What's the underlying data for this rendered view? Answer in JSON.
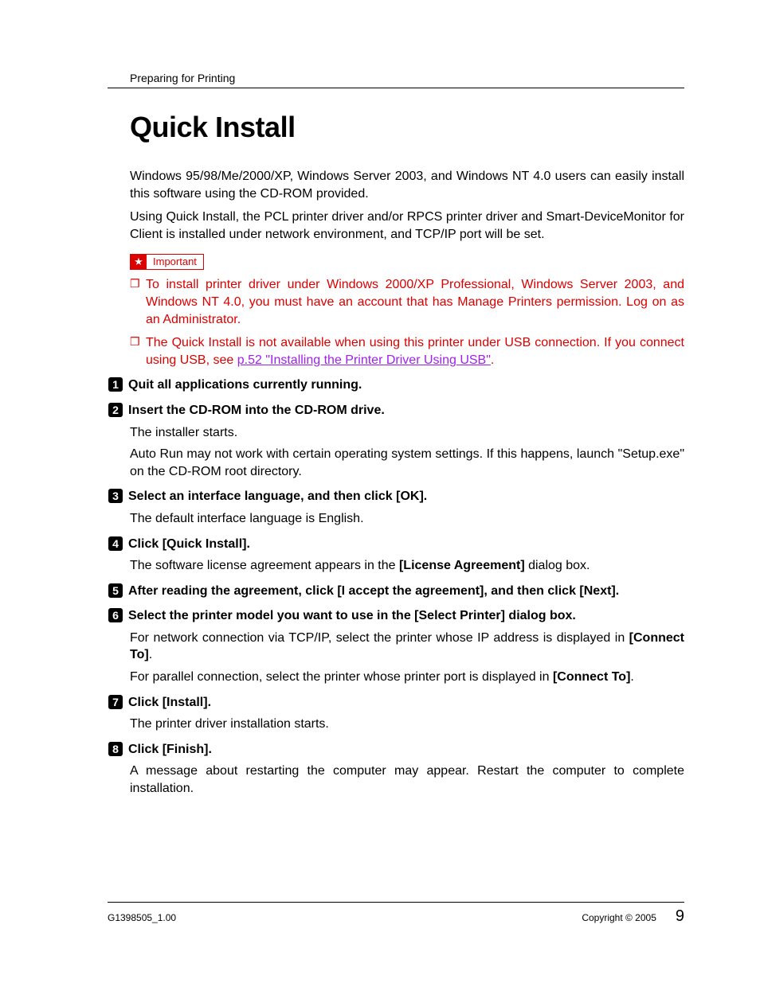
{
  "header": {
    "section": "Preparing for Printing"
  },
  "title": "Quick Install",
  "intro": [
    "Windows 95/98/Me/2000/XP, Windows Server 2003, and Windows NT 4.0 users can easily install this software using the CD-ROM provided.",
    "Using Quick Install, the PCL printer driver and/or RPCS printer driver and Smart-DeviceMonitor for Client is installed under network environment, and TCP/IP port will be set."
  ],
  "important": {
    "label": "Important",
    "items": [
      {
        "text": "To install printer driver under Windows 2000/XP Professional, Windows Server 2003, and Windows NT 4.0, you must have an account that has Manage Printers permission. Log on as an Administrator."
      },
      {
        "prefix": "The Quick Install is not available when using this printer under USB connection. If you connect using USB, see ",
        "link": "p.52 \"Installing the Printer Driver Using USB\"",
        "suffix": "."
      }
    ]
  },
  "steps": [
    {
      "n": "1",
      "title_plain": "Quit all applications currently running."
    },
    {
      "n": "2",
      "title_plain": "Insert the CD-ROM into the CD-ROM drive.",
      "body": [
        "The installer starts.",
        "Auto Run may not work with certain operating system settings. If this happens, launch \"Setup.exe\" on the CD-ROM root directory."
      ]
    },
    {
      "n": "3",
      "title_pre": "Select an interface language, and then click ",
      "title_ui": "[OK]",
      "title_post": ".",
      "body": [
        "The default interface language is English."
      ]
    },
    {
      "n": "4",
      "title_pre": "Click ",
      "title_ui": "[Quick Install]",
      "title_post": ".",
      "body_rich": {
        "pre": "The software license agreement appears in the ",
        "ui": "[License Agreement]",
        "post": " dialog box."
      }
    },
    {
      "n": "5",
      "title_pre": "After reading the agreement, click ",
      "title_ui": "[I accept the agreement]",
      "title_mid": ", and then click ",
      "title_ui2": "[Next]",
      "title_post": "."
    },
    {
      "n": "6",
      "title_pre": "Select the printer model you want to use in the ",
      "title_ui": "[Select Printer]",
      "title_post": " dialog box.",
      "body_rich_list": [
        {
          "pre": "For network connection via TCP/IP, select the printer whose IP address is displayed in ",
          "ui": "[Connect To]",
          "post": "."
        },
        {
          "pre": "For parallel connection, select the printer whose printer port is displayed in ",
          "ui": "[Connect To]",
          "post": "."
        }
      ]
    },
    {
      "n": "7",
      "title_pre": "Click ",
      "title_ui": "[Install]",
      "title_post": ".",
      "body": [
        "The printer driver installation starts."
      ]
    },
    {
      "n": "8",
      "title_pre": "Click ",
      "title_ui": "[Finish]",
      "title_post": ".",
      "body": [
        "A message about restarting the computer may appear. Restart the computer to complete installation."
      ]
    }
  ],
  "footer": {
    "left": "G1398505_1.00",
    "copyright": "Copyright © 2005",
    "page": "9"
  },
  "colors": {
    "accent_red": "#d00000",
    "link_purple": "#a020f0"
  }
}
